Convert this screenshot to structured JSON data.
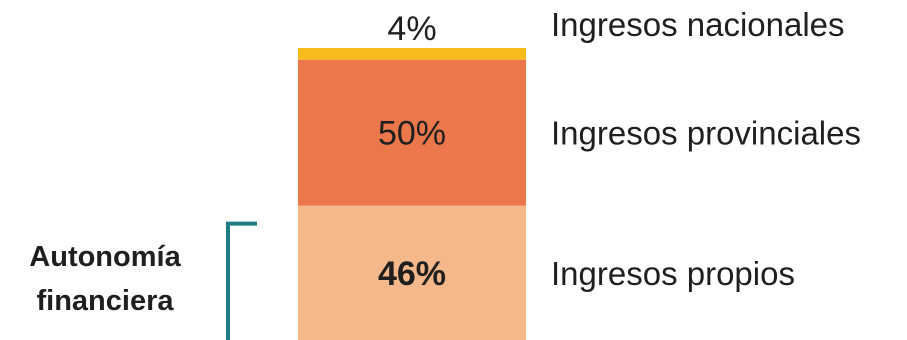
{
  "chart_data": {
    "type": "bar",
    "orientation": "vertical",
    "stacked": true,
    "categories": [
      ""
    ],
    "series": [
      {
        "name": "Ingresos propios",
        "values": [
          46
        ],
        "label": "46%",
        "color": "#F4B88A",
        "label_bold": true
      },
      {
        "name": "Ingresos provinciales",
        "values": [
          50
        ],
        "label": "50%",
        "color": "#EC774A",
        "label_bold": false
      },
      {
        "name": "Ingresos nacionales",
        "values": [
          4
        ],
        "label": "4%",
        "color": "#F8BB1C",
        "label_bold": false
      }
    ],
    "ylim": [
      0,
      100
    ],
    "grid": false,
    "legend": "right",
    "bracket": {
      "label_lines": [
        "Autonomía",
        "financiera"
      ],
      "color": "#1F7C86",
      "spans": "Ingresos propios"
    }
  }
}
